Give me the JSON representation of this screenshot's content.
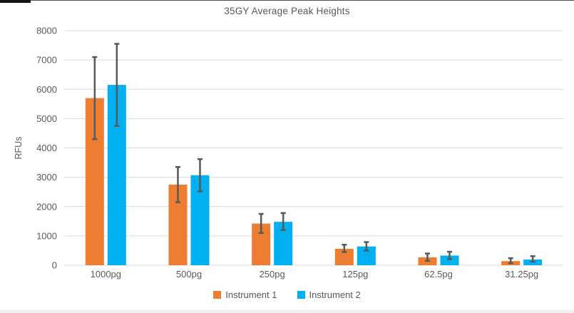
{
  "chart_data": {
    "type": "bar",
    "title": "35GY Average Peak Heights",
    "xlabel": "",
    "ylabel": "RFUs",
    "ylim": [
      0,
      8000
    ],
    "ytick_step": 1000,
    "grid": true,
    "legend_position": "bottom",
    "categories": [
      "1000pg",
      "500pg",
      "250pg",
      "125pg",
      "62.5pg",
      "31.25pg"
    ],
    "series": [
      {
        "name": "Instrument 1",
        "color": "#ED7D31",
        "values": [
          5700,
          2750,
          1420,
          560,
          270,
          140
        ],
        "error_low": [
          4300,
          2150,
          1100,
          450,
          150,
          70
        ],
        "error_high": [
          7100,
          3350,
          1750,
          700,
          400,
          240
        ]
      },
      {
        "name": "Instrument 2",
        "color": "#00B0F0",
        "values": [
          6150,
          3070,
          1480,
          640,
          330,
          195
        ],
        "error_low": [
          4750,
          2520,
          1200,
          500,
          210,
          120
        ],
        "error_high": [
          7550,
          3620,
          1780,
          790,
          460,
          310
        ]
      }
    ],
    "colors": {
      "error_bar": "#595959",
      "gridline": "#DADADA",
      "axis_text": "#595959",
      "background": "#FFFFFF"
    }
  }
}
